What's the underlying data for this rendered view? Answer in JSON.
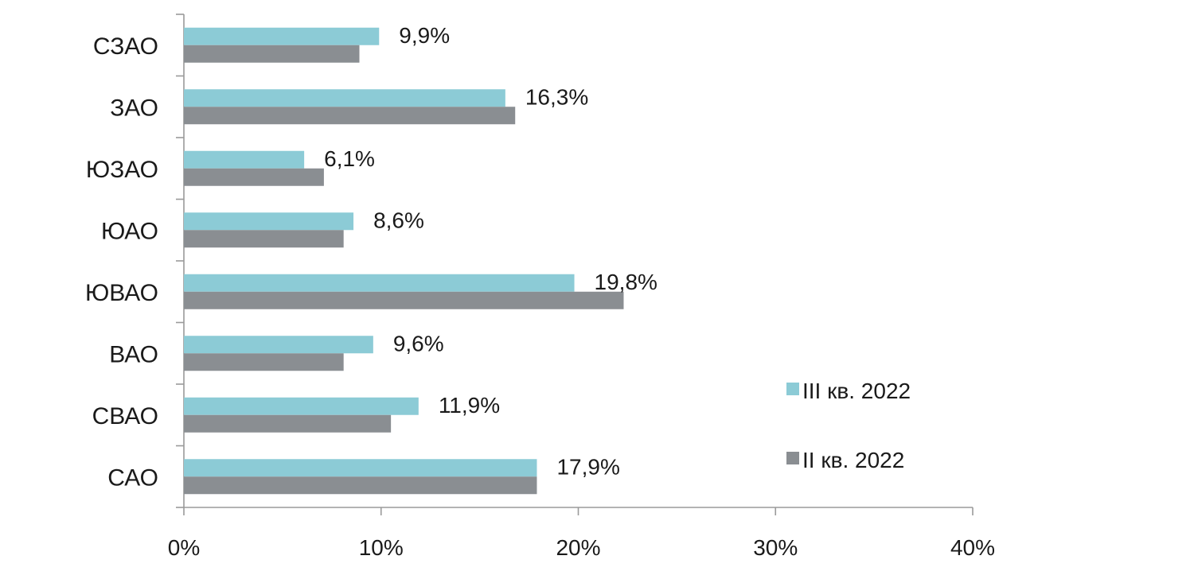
{
  "chart_data": {
    "type": "bar",
    "orientation": "horizontal",
    "categories": [
      "СЗАО",
      "ЗАО",
      "ЮЗАО",
      "ЮАО",
      "ЮВАО",
      "ВАО",
      "СВАО",
      "САО"
    ],
    "series": [
      {
        "name": "III кв. 2022",
        "color": "#8ccbd6",
        "values": [
          9.9,
          16.3,
          6.1,
          8.6,
          19.8,
          9.6,
          11.9,
          17.9
        ]
      },
      {
        "name": "II кв. 2022",
        "color": "#8a8e92",
        "values": [
          8.9,
          16.8,
          7.1,
          8.1,
          22.3,
          8.1,
          10.5,
          17.9
        ]
      }
    ],
    "data_labels": [
      "9,9%",
      "16,3%",
      "6,1%",
      "8,6%",
      "19,8%",
      "9,6%",
      "11,9%",
      "17,9%"
    ],
    "xlim": [
      0,
      40
    ],
    "x_ticks": [
      0,
      10,
      20,
      30,
      40
    ],
    "x_tick_labels": [
      "0%",
      "10%",
      "20%",
      "30%",
      "40%"
    ],
    "legend_position": "right",
    "grid": false
  }
}
